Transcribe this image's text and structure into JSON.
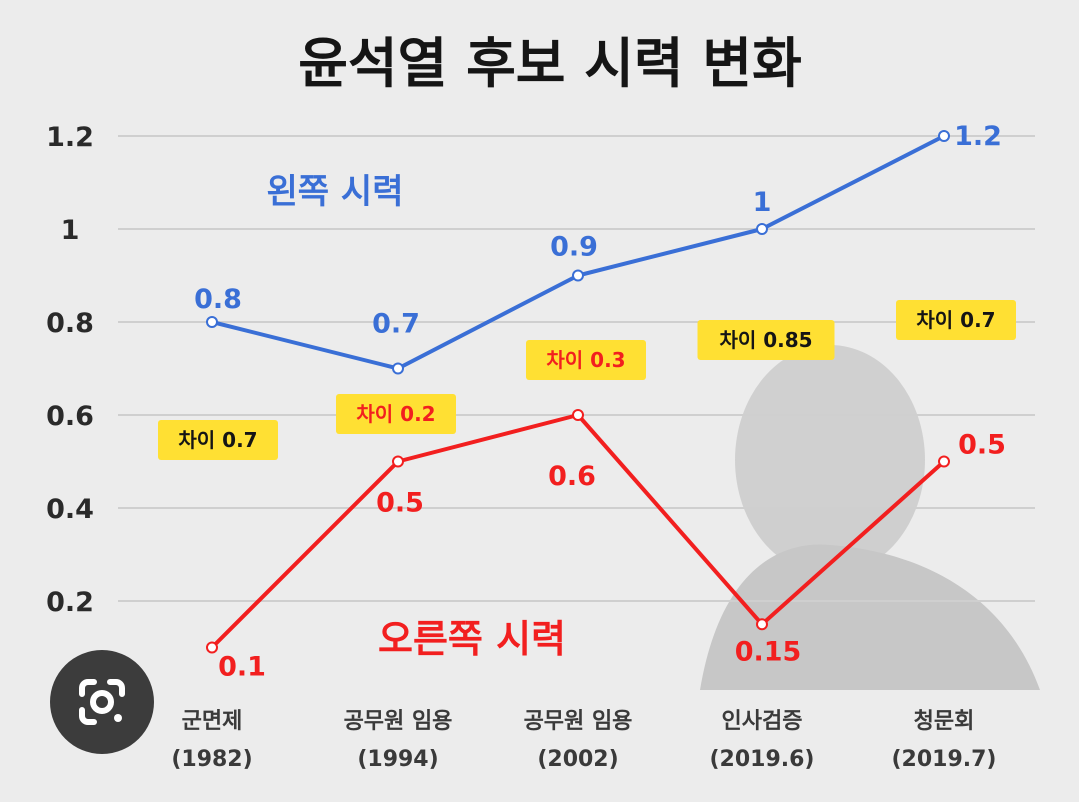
{
  "chart_data": {
    "type": "line",
    "title": "윤석열 후보 시력 변화",
    "categories": [
      "군면제\n(1982)",
      "공무원 임용\n(1994)",
      "공무원 임용\n(2002)",
      "인사검증\n(2019.6)",
      "청문회\n(2019.7)"
    ],
    "series": [
      {
        "name": "왼쪽 시력",
        "values": [
          0.8,
          0.7,
          0.9,
          1,
          1.2
        ],
        "labels": [
          "0.8",
          "0.7",
          "0.9",
          "1",
          "1.2"
        ],
        "color": "#3a6fd6"
      },
      {
        "name": "오른쪽 시력",
        "values": [
          0.1,
          0.5,
          0.6,
          0.15,
          0.5
        ],
        "labels": [
          "0.1",
          "0.5",
          "0.6",
          "0.15",
          "0.5"
        ],
        "color": "#f21f1f"
      }
    ],
    "differences": [
      "차이 0.7",
      "차이 0.2",
      "차이 0.3",
      "차이 0.85",
      "차이 0.7"
    ],
    "yticks": [
      "0.2",
      "0.4",
      "0.6",
      "0.8",
      "1",
      "1.2"
    ],
    "ylim": [
      0,
      1.2
    ],
    "grid": true,
    "legend": "inline"
  },
  "colors": {
    "background": "#ececec",
    "left_eye": "#3a6fd6",
    "right_eye": "#f21f1f",
    "badge": "#ffe033"
  },
  "overlay": {
    "lens_icon": "google-lens-icon"
  }
}
